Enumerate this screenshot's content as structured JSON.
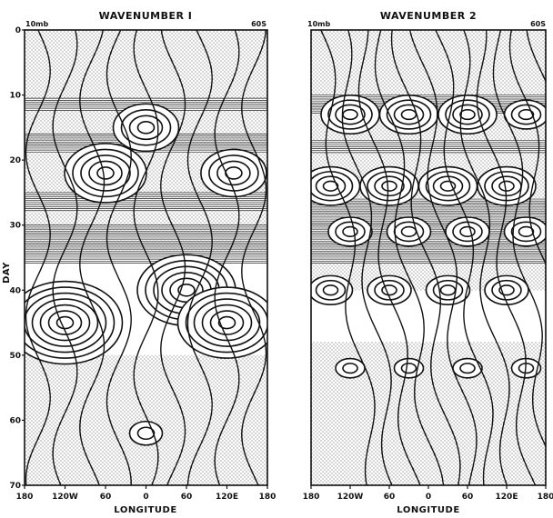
{
  "chart_data": [
    {
      "type": "heatmap",
      "title": "WAVENUMBER I",
      "level_label": "10mb",
      "latitude_label": "60S",
      "xlabel": "LONGITUDE",
      "ylabel": "DAY",
      "x_ticks": [
        "180",
        "120W",
        "60",
        "0",
        "60",
        "120E",
        "180"
      ],
      "y_ticks": [
        0,
        10,
        20,
        30,
        40,
        50,
        60,
        70
      ],
      "ylim": [
        0,
        70
      ],
      "stipple_regions": [
        [
          0,
          24
        ],
        [
          24,
          34
        ],
        [
          50,
          70
        ]
      ],
      "contour_bands": [
        [
          10.5,
          12.5
        ],
        [
          16,
          19
        ],
        [
          25,
          28
        ],
        [
          30,
          36
        ]
      ],
      "cells": [
        {
          "day": 15,
          "lon": 0,
          "rings": 4
        },
        {
          "day": 22,
          "lon": -60,
          "rings": 5
        },
        {
          "day": 22,
          "lon": 130,
          "rings": 4
        },
        {
          "day": 40,
          "lon": 60,
          "rings": 6
        },
        {
          "day": 45,
          "lon": -120,
          "rings": 7
        },
        {
          "day": 45,
          "lon": 120,
          "rings": 6
        },
        {
          "day": 62,
          "lon": 0,
          "rings": 2
        }
      ]
    },
    {
      "type": "heatmap",
      "title": "WAVENUMBER 2",
      "level_label": "10mb",
      "latitude_label": "60S",
      "xlabel": "LONGITUDE",
      "ylabel": "",
      "x_ticks": [
        "180",
        "120W",
        "60",
        "0",
        "60",
        "120E",
        "180"
      ],
      "y_ticks": [
        0,
        10,
        20,
        30,
        40,
        50,
        60,
        70
      ],
      "ylim": [
        0,
        70
      ],
      "stipple_regions": [
        [
          0,
          5
        ],
        [
          5,
          40
        ],
        [
          48,
          70
        ]
      ],
      "contour_bands": [
        [
          10,
          13
        ],
        [
          17,
          19
        ],
        [
          26,
          30
        ],
        [
          30,
          36
        ]
      ],
      "cells": [
        {
          "day": 13,
          "lon": -120,
          "rings": 4
        },
        {
          "day": 13,
          "lon": -30,
          "rings": 4
        },
        {
          "day": 13,
          "lon": 60,
          "rings": 4
        },
        {
          "day": 13,
          "lon": 150,
          "rings": 3
        },
        {
          "day": 24,
          "lon": -150,
          "rings": 4
        },
        {
          "day": 24,
          "lon": -60,
          "rings": 4
        },
        {
          "day": 24,
          "lon": 30,
          "rings": 4
        },
        {
          "day": 24,
          "lon": 120,
          "rings": 4
        },
        {
          "day": 31,
          "lon": -120,
          "rings": 3
        },
        {
          "day": 31,
          "lon": -30,
          "rings": 3
        },
        {
          "day": 31,
          "lon": 60,
          "rings": 3
        },
        {
          "day": 31,
          "lon": 150,
          "rings": 3
        },
        {
          "day": 40,
          "lon": -150,
          "rings": 3
        },
        {
          "day": 40,
          "lon": -60,
          "rings": 3
        },
        {
          "day": 40,
          "lon": 30,
          "rings": 3
        },
        {
          "day": 40,
          "lon": 120,
          "rings": 3
        },
        {
          "day": 52,
          "lon": -120,
          "rings": 2
        },
        {
          "day": 52,
          "lon": -30,
          "rings": 2
        },
        {
          "day": 52,
          "lon": 60,
          "rings": 2
        },
        {
          "day": 52,
          "lon": 150,
          "rings": 2
        }
      ]
    }
  ]
}
